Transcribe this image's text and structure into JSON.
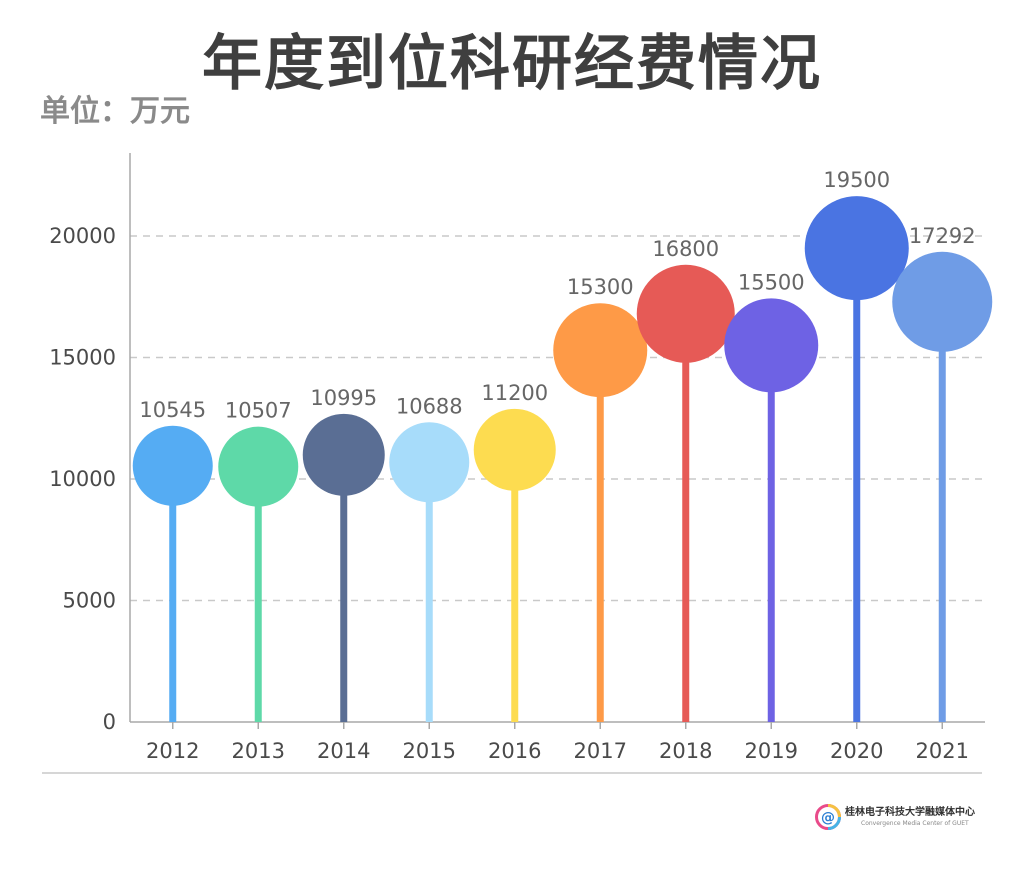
{
  "header": {
    "title": "年度到位科研经费情况",
    "unit": "单位：万元"
  },
  "chart_data": {
    "type": "bar",
    "style": "lollipop",
    "categories": [
      "2012",
      "2013",
      "2014",
      "2015",
      "2016",
      "2017",
      "2018",
      "2019",
      "2020",
      "2021"
    ],
    "values": [
      10545,
      10507,
      10995,
      10688,
      11200,
      15300,
      16800,
      15500,
      19500,
      17292
    ],
    "colors": [
      "#55acf3",
      "#5ed9a8",
      "#5a6e94",
      "#a7dcfa",
      "#fddc50",
      "#fe9a47",
      "#e65a56",
      "#6e62e4",
      "#4a74e2",
      "#6f9ce6"
    ],
    "yticks": [
      0,
      5000,
      10000,
      15000,
      20000
    ],
    "ylim": [
      0,
      23500
    ],
    "grid": true,
    "xlabel": "",
    "ylabel": ""
  },
  "footer": {
    "brand_name": "桂林电子科技大学融媒体中心",
    "brand_sub": "Convergence Media Center of GUET",
    "logo_icon": "at-sign-logo-icon"
  }
}
